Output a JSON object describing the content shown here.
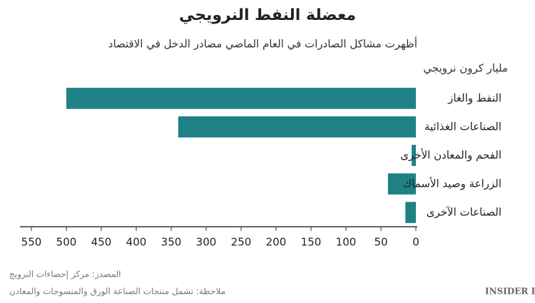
{
  "chart_data": {
    "type": "bar",
    "orientation": "horizontal",
    "title": "معضلة النفط النرويجي",
    "subtitle": "أظهرت مشاكل  الصادرات في العام الماضي مصادر الدخل في الاقتصاد",
    "unit_label": "مليار كرون نرويجي",
    "categories": [
      "النفط والغاز",
      "الصناعات الغذائية",
      "الفحم والمعادن الأخرى",
      "الزراعة وصيد الأسماك",
      "الصناعات الآخرى"
    ],
    "values": [
      500,
      340,
      6,
      40,
      15
    ],
    "color": "#1f8185",
    "xlim": [
      0,
      550
    ],
    "x_reversed": true,
    "xticks": [
      0,
      50,
      100,
      150,
      200,
      250,
      300,
      350,
      400,
      450,
      500,
      550
    ],
    "source": "المصدر: مركز إحصاءات النرويج",
    "note": "ملاحظة: تشمل منتجات الصناعة الورق والمنسوجات والمعادن",
    "logo": "INSIDER PRO"
  }
}
